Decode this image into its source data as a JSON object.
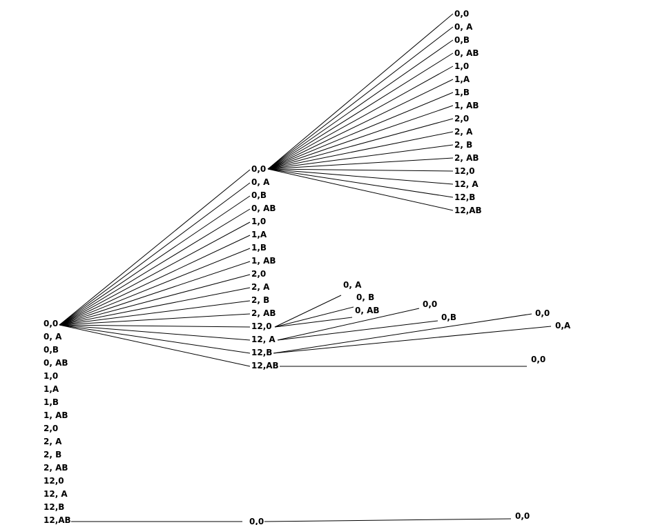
{
  "state_labels": [
    "0,0",
    "0, A",
    "0,B",
    "0, AB",
    "1,0",
    "1,A",
    "1,B",
    "1, AB",
    "2,0",
    "2, A",
    "2, B",
    "2, AB",
    "12,0",
    "12, A",
    "12,B",
    "12,AB"
  ],
  "branch_labels": {
    "from_12_0": [
      "0, A",
      "0, B",
      "0, AB"
    ],
    "from_12_A_first": "0,0",
    "from_12_A_second": "0,B",
    "from_12_B_first": "0,0",
    "from_12_B_second": "0,A",
    "from_12_AB": "0,0",
    "root_12_AB_mid": "0,0",
    "root_12_AB_end": "0,0"
  }
}
